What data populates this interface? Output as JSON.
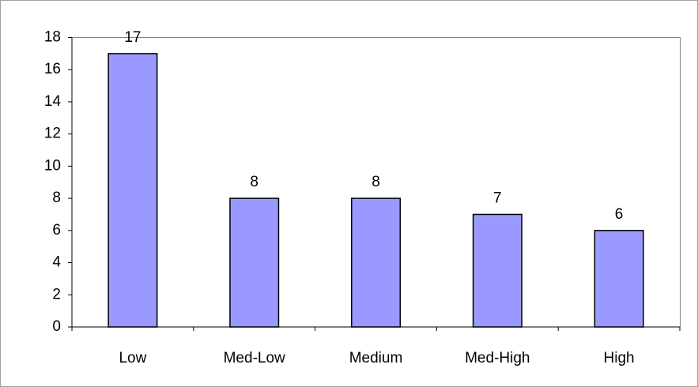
{
  "chart_data": {
    "type": "bar",
    "categories": [
      "Low",
      "Med-Low",
      "Medium",
      "Med-High",
      "High"
    ],
    "values": [
      17,
      8,
      8,
      7,
      6
    ],
    "color": "#9999ff",
    "ylim": [
      0,
      18
    ],
    "yticks": [
      0,
      2,
      4,
      6,
      8,
      10,
      12,
      14,
      16,
      18
    ],
    "grid": false
  }
}
